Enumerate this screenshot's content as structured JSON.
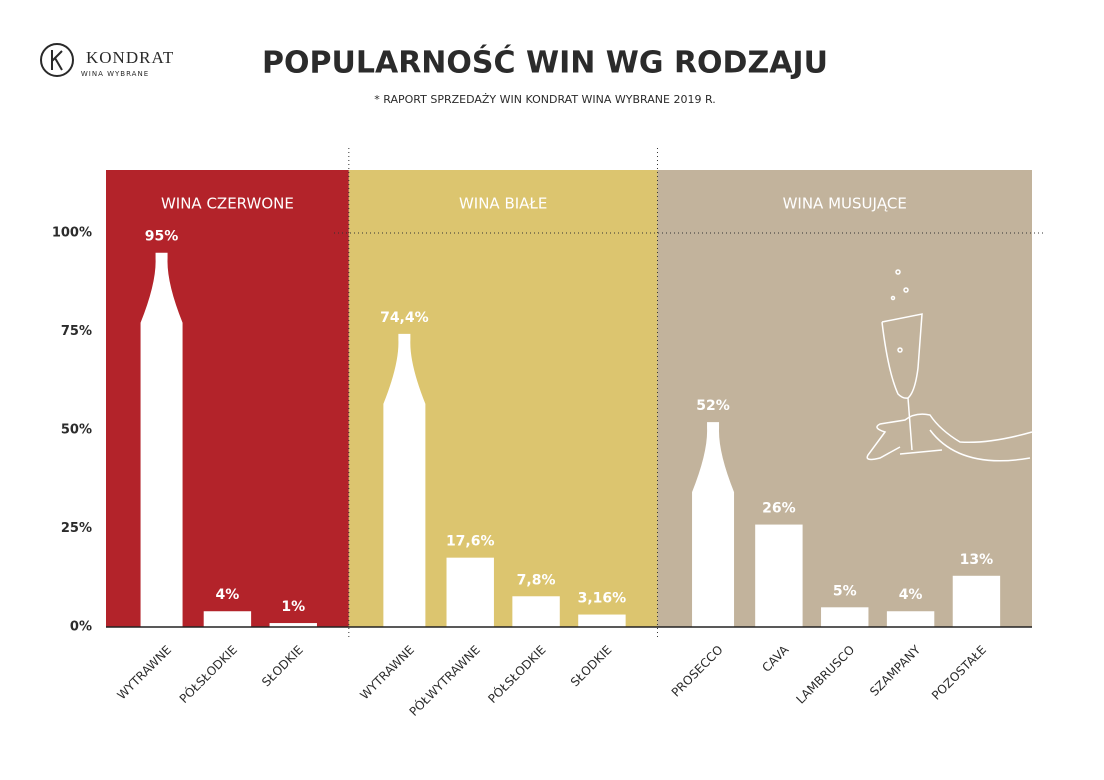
{
  "brand": {
    "name": "KONDRAT",
    "tagline": "WINA WYBRANE"
  },
  "chart_data": {
    "type": "grouped-bar",
    "title": "POPULARNOŚĆ WIN WG RODZAJU",
    "subtitle": "* RAPORT SPRZEDAŻY WIN KONDRAT WINA WYBRANE 2019 R.",
    "ylim": [
      0,
      116
    ],
    "yticks": [
      {
        "value": 0,
        "label": "0%"
      },
      {
        "value": 25,
        "label": "25%"
      },
      {
        "value": 50,
        "label": "50%"
      },
      {
        "value": 75,
        "label": "75%"
      },
      {
        "value": 100,
        "label": "100%"
      }
    ],
    "groups": [
      {
        "name": "WINA CZERWONE",
        "color": "#b3232a",
        "categories": [
          "WYTRAWNE",
          "PÓŁSŁODKIE",
          "SŁODKIE"
        ],
        "values": [
          95,
          4,
          1
        ],
        "value_labels": [
          "95%",
          "4%",
          "1%"
        ]
      },
      {
        "name": "WINA BIAŁE",
        "color": "#dcc56f",
        "categories": [
          "WYTRAWNE",
          "PÓŁWYTRAWNE",
          "PÓŁSŁODKIE",
          "SŁODKIE"
        ],
        "values": [
          74.4,
          17.6,
          7.8,
          3.16
        ],
        "value_labels": [
          "74,4%",
          "17,6%",
          "7,8%",
          "3,16%"
        ]
      },
      {
        "name": "WINA MUSUJĄCE",
        "color": "#c2b39c",
        "categories": [
          "PROSECCO",
          "CAVA",
          "LAMBRUSCO",
          "SZAMPANY",
          "POZOSTAŁE"
        ],
        "values": [
          52,
          26,
          5,
          4,
          13
        ],
        "value_labels": [
          "52%",
          "26%",
          "5%",
          "4%",
          "13%"
        ]
      }
    ]
  }
}
